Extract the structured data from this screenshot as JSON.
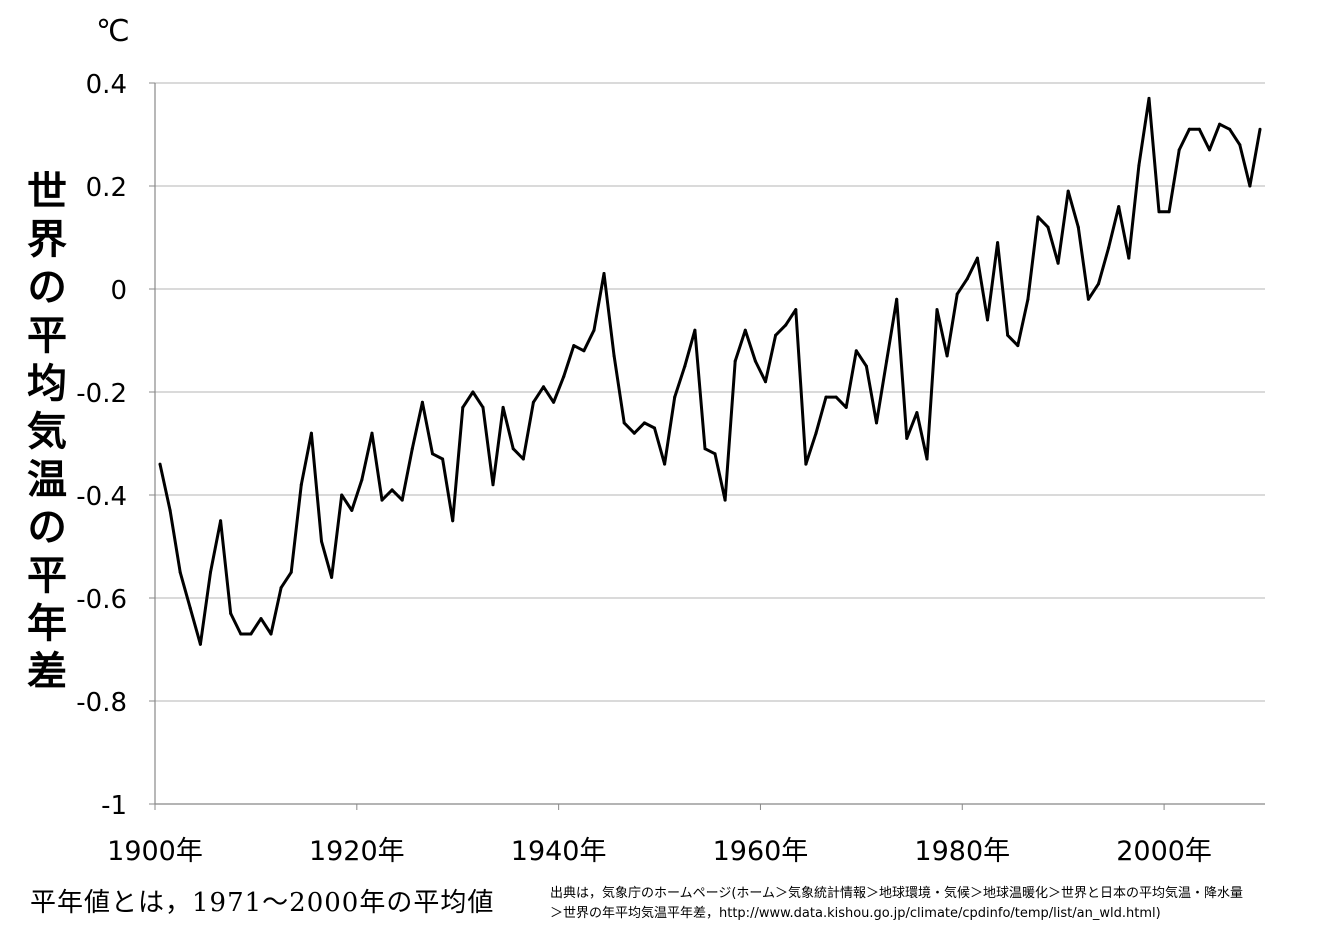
{
  "chart_data": {
    "type": "line",
    "ylabel": "世界の平均気温の平年差",
    "unit": "℃",
    "ylim": [
      -1,
      0.4
    ],
    "yticks": [
      {
        "value": 0.4,
        "label": "0.4"
      },
      {
        "value": 0.2,
        "label": "0.2"
      },
      {
        "value": 0,
        "label": "0"
      },
      {
        "value": -0.2,
        "label": "-0.2"
      },
      {
        "value": -0.4,
        "label": "-0.4"
      },
      {
        "value": -0.6,
        "label": "-0.6"
      },
      {
        "value": -0.8,
        "label": "-0.8"
      },
      {
        "value": -1,
        "label": "-1"
      }
    ],
    "xlim": [
      1899.5,
      2009.5
    ],
    "xticks": [
      {
        "value": 1900,
        "label": "1900年"
      },
      {
        "value": 1920,
        "label": "1920年"
      },
      {
        "value": 1940,
        "label": "1940年"
      },
      {
        "value": 1960,
        "label": "1960年"
      },
      {
        "value": 1980,
        "label": "1980年"
      },
      {
        "value": 2000,
        "label": "2000年"
      }
    ],
    "grid": true,
    "x": [
      1900,
      1901,
      1902,
      1903,
      1904,
      1905,
      1906,
      1907,
      1908,
      1909,
      1910,
      1911,
      1912,
      1913,
      1914,
      1915,
      1916,
      1917,
      1918,
      1919,
      1920,
      1921,
      1922,
      1923,
      1924,
      1925,
      1926,
      1927,
      1928,
      1929,
      1930,
      1931,
      1932,
      1933,
      1934,
      1935,
      1936,
      1937,
      1938,
      1939,
      1940,
      1941,
      1942,
      1943,
      1944,
      1945,
      1946,
      1947,
      1948,
      1949,
      1950,
      1951,
      1952,
      1953,
      1954,
      1955,
      1956,
      1957,
      1958,
      1959,
      1960,
      1961,
      1962,
      1963,
      1964,
      1965,
      1966,
      1967,
      1968,
      1969,
      1970,
      1971,
      1972,
      1973,
      1974,
      1975,
      1976,
      1977,
      1978,
      1979,
      1980,
      1981,
      1982,
      1983,
      1984,
      1985,
      1986,
      1987,
      1988,
      1989,
      1990,
      1991,
      1992,
      1993,
      1994,
      1995,
      1996,
      1997,
      1998,
      1999,
      2000,
      2001,
      2002,
      2003,
      2004,
      2005,
      2006,
      2007,
      2008,
      2009
    ],
    "series": [
      {
        "values": [
          -0.34,
          -0.43,
          -0.55,
          -0.62,
          -0.69,
          -0.55,
          -0.45,
          -0.63,
          -0.67,
          -0.67,
          -0.64,
          -0.67,
          -0.58,
          -0.55,
          -0.38,
          -0.28,
          -0.49,
          -0.56,
          -0.4,
          -0.43,
          -0.37,
          -0.28,
          -0.41,
          -0.39,
          -0.41,
          -0.31,
          -0.22,
          -0.32,
          -0.33,
          -0.45,
          -0.23,
          -0.2,
          -0.23,
          -0.38,
          -0.23,
          -0.31,
          -0.33,
          -0.22,
          -0.19,
          -0.22,
          -0.17,
          -0.11,
          -0.12,
          -0.08,
          0.03,
          -0.13,
          -0.26,
          -0.28,
          -0.26,
          -0.27,
          -0.34,
          -0.21,
          -0.15,
          -0.08,
          -0.31,
          -0.32,
          -0.41,
          -0.14,
          -0.08,
          -0.14,
          -0.18,
          -0.09,
          -0.07,
          -0.04,
          -0.34,
          -0.28,
          -0.21,
          -0.21,
          -0.23,
          -0.12,
          -0.15,
          -0.26,
          -0.14,
          -0.02,
          -0.29,
          -0.24,
          -0.33,
          -0.04,
          -0.13,
          -0.01,
          0.02,
          0.06,
          -0.06,
          0.09,
          -0.09,
          -0.11,
          -0.02,
          0.14,
          0.12,
          0.05,
          0.19,
          0.12,
          -0.02,
          0.01,
          0.08,
          0.16,
          0.06,
          0.24,
          0.37,
          0.15,
          0.15,
          0.27,
          0.31,
          0.31,
          0.27,
          0.32,
          0.31,
          0.28,
          0.2,
          0.31
        ],
        "color": "#000000"
      }
    ]
  },
  "footnote": "平年値とは，1971〜2000年の平均値",
  "source": {
    "line1": "出典は，気象庁のホームページ(ホーム＞気象統計情報＞地球環境・気候＞地球温暖化＞世界と日本の平均気温・降水量",
    "line2": "＞世界の年平均気温平年差，http://www.data.kishou.go.jp/climate/cpdinfo/temp/list/an_wld.html)"
  }
}
